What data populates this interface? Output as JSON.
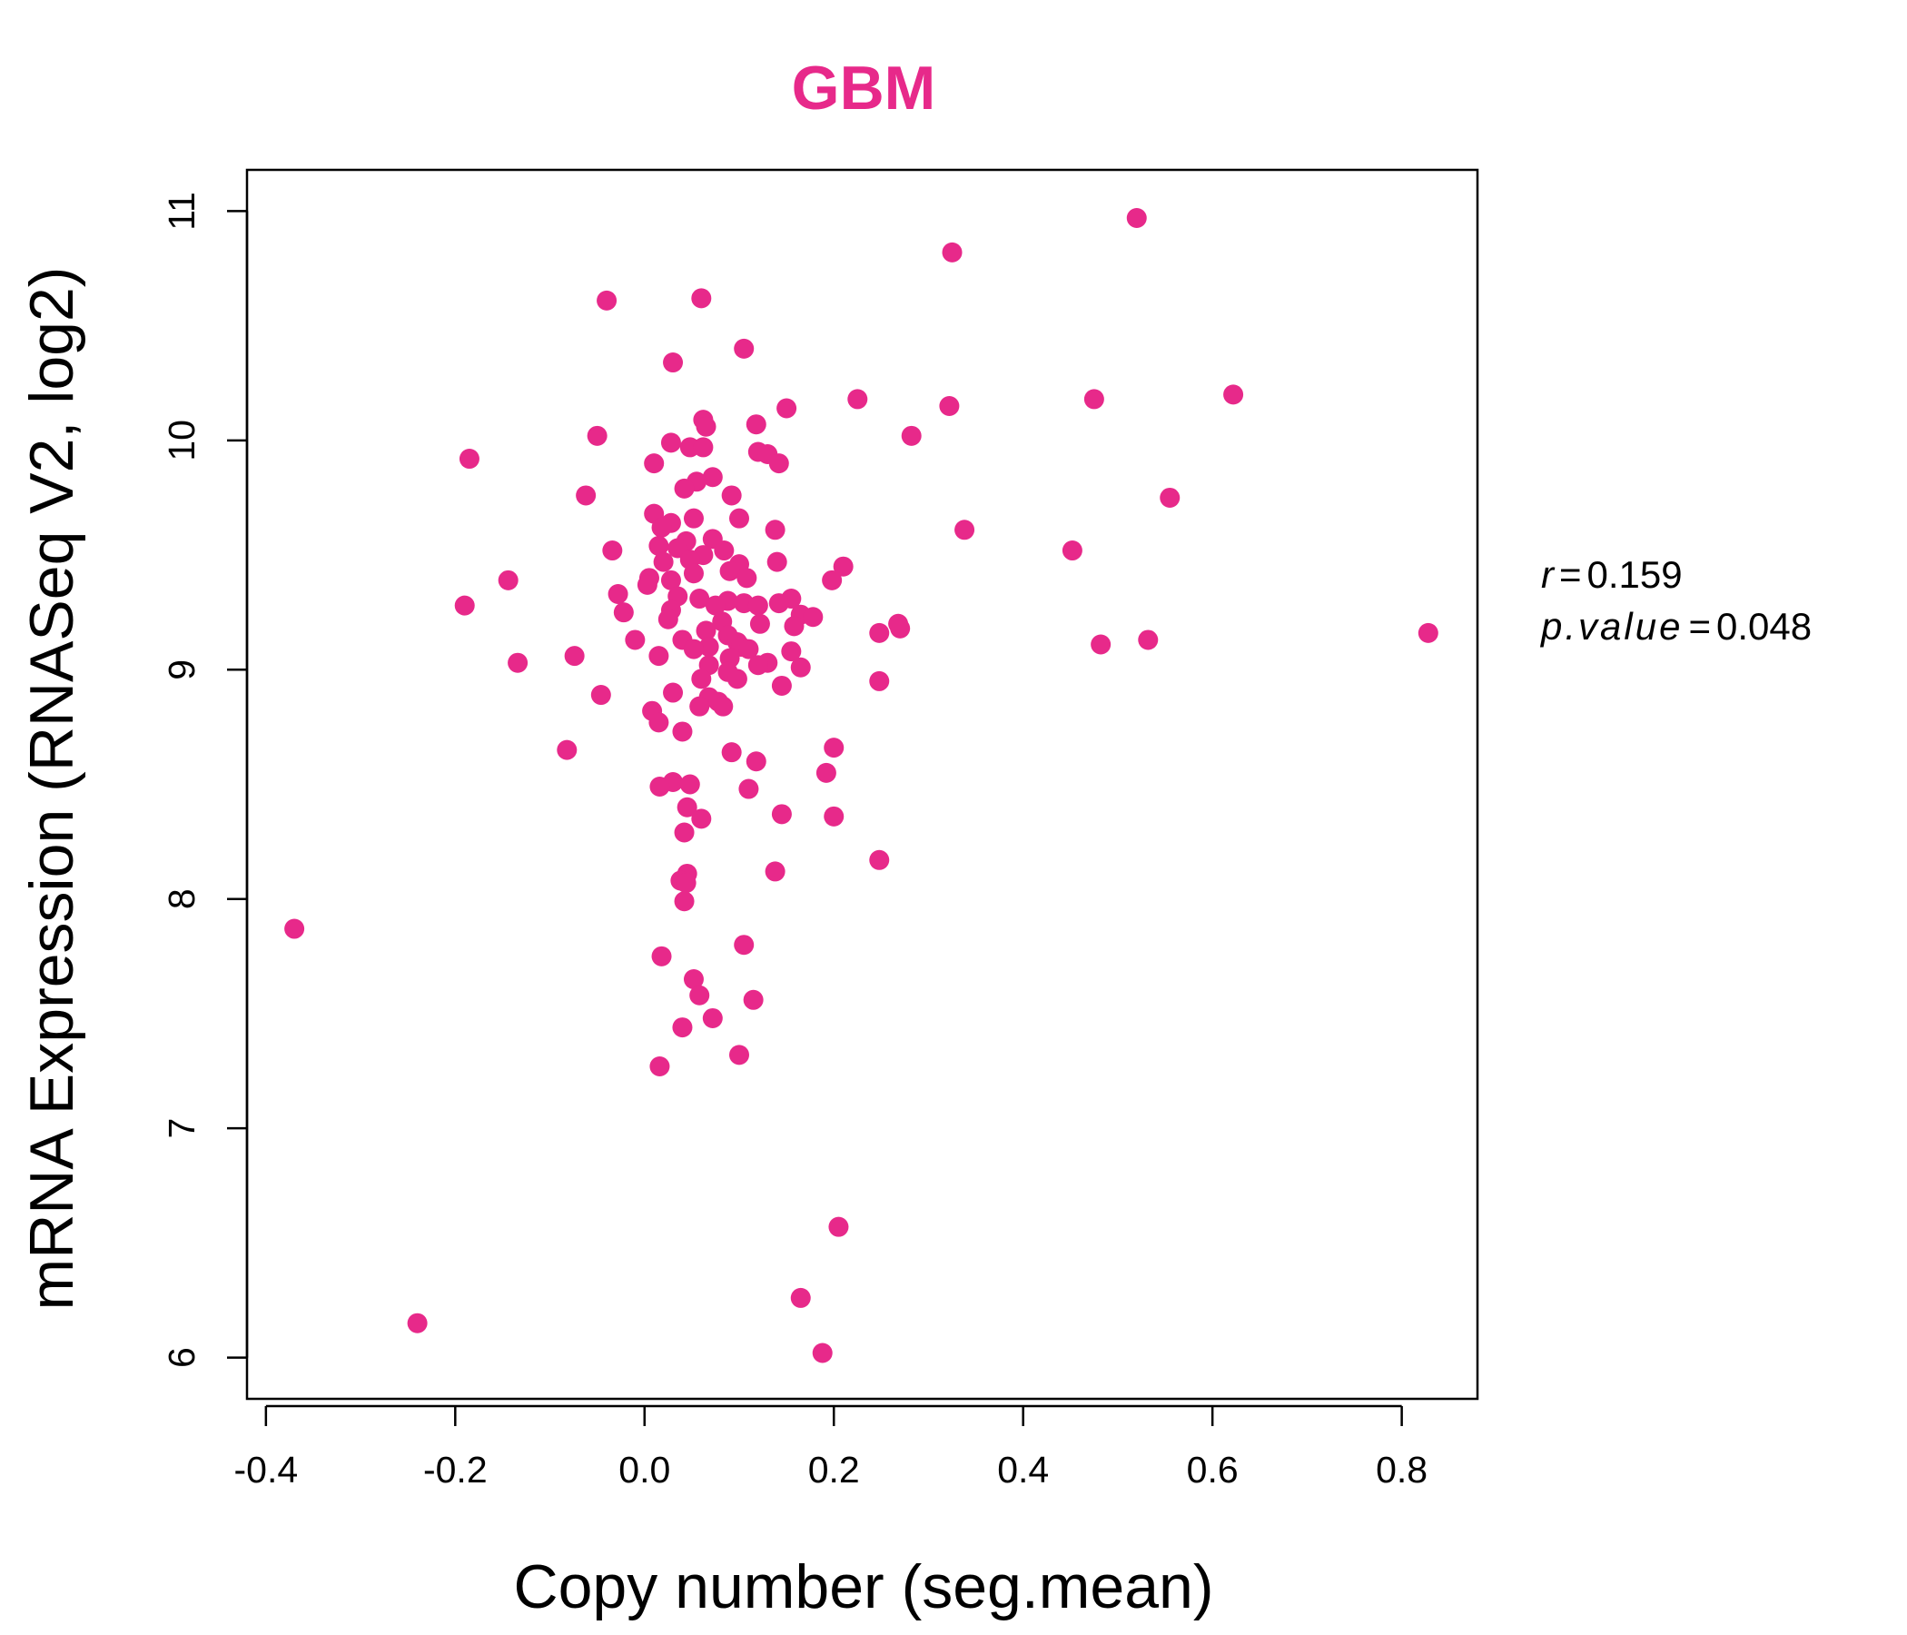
{
  "chart_data": {
    "type": "scatter",
    "title": "GBM",
    "xlabel": "Copy number (seg.mean)",
    "ylabel": "mRNA Expression (RNASeq V2, log2)",
    "xlim": [
      -0.42,
      0.88
    ],
    "ylim": [
      5.82,
      11.18
    ],
    "xticks": [
      -0.4,
      -0.2,
      0.0,
      0.2,
      0.4,
      0.6,
      0.8
    ],
    "xtick_labels": [
      "-0.4",
      "-0.2",
      "0.0",
      "0.2",
      "0.4",
      "0.6",
      "0.8"
    ],
    "yticks": [
      6,
      7,
      8,
      9,
      10,
      11
    ],
    "ytick_labels": [
      "6",
      "7",
      "8",
      "9",
      "10",
      "11"
    ],
    "point_color": "#E7298A",
    "title_color": "#E7298A",
    "grid": false,
    "stats": {
      "r_label": "r",
      "r_value": "0.159",
      "p_label": "p.value",
      "p_value": "0.048",
      "eq": "="
    },
    "points": [
      [
        0.52,
        10.97
      ],
      [
        0.325,
        10.82
      ],
      [
        -0.04,
        10.61
      ],
      [
        0.06,
        10.62
      ],
      [
        0.105,
        10.4
      ],
      [
        0.03,
        10.34
      ],
      [
        0.225,
        10.18
      ],
      [
        0.475,
        10.18
      ],
      [
        0.622,
        10.2
      ],
      [
        0.322,
        10.15
      ],
      [
        0.15,
        10.14
      ],
      [
        0.062,
        10.09
      ],
      [
        0.065,
        10.06
      ],
      [
        0.118,
        10.07
      ],
      [
        -0.05,
        10.02
      ],
      [
        0.028,
        9.99
      ],
      [
        0.282,
        10.02
      ],
      [
        0.048,
        9.97
      ],
      [
        0.062,
        9.97
      ],
      [
        0.12,
        9.95
      ],
      [
        0.13,
        9.94
      ],
      [
        -0.185,
        9.92
      ],
      [
        0.01,
        9.9
      ],
      [
        0.142,
        9.9
      ],
      [
        0.072,
        9.84
      ],
      [
        0.055,
        9.82
      ],
      [
        0.042,
        9.79
      ],
      [
        -0.062,
        9.76
      ],
      [
        0.092,
        9.76
      ],
      [
        0.555,
        9.75
      ],
      [
        0.01,
        9.68
      ],
      [
        0.052,
        9.66
      ],
      [
        0.1,
        9.66
      ],
      [
        0.028,
        9.64
      ],
      [
        0.018,
        9.62
      ],
      [
        0.138,
        9.61
      ],
      [
        0.338,
        9.61
      ],
      [
        0.072,
        9.57
      ],
      [
        0.044,
        9.56
      ],
      [
        0.015,
        9.54
      ],
      [
        0.035,
        9.53
      ],
      [
        -0.034,
        9.52
      ],
      [
        0.084,
        9.52
      ],
      [
        0.452,
        9.52
      ],
      [
        0.062,
        9.5
      ],
      [
        0.048,
        9.48
      ],
      [
        0.02,
        9.47
      ],
      [
        0.14,
        9.47
      ],
      [
        0.1,
        9.46
      ],
      [
        0.21,
        9.45
      ],
      [
        0.09,
        9.43
      ],
      [
        0.052,
        9.42
      ],
      [
        0.005,
        9.4
      ],
      [
        0.108,
        9.4
      ],
      [
        0.198,
        9.39
      ],
      [
        -0.144,
        9.39
      ],
      [
        0.028,
        9.39
      ],
      [
        0.003,
        9.37
      ],
      [
        -0.028,
        9.33
      ],
      [
        0.035,
        9.32
      ],
      [
        0.058,
        9.31
      ],
      [
        0.155,
        9.31
      ],
      [
        0.088,
        9.3
      ],
      [
        0.105,
        9.29
      ],
      [
        0.142,
        9.29
      ],
      [
        -0.19,
        9.28
      ],
      [
        0.075,
        9.28
      ],
      [
        0.12,
        9.28
      ],
      [
        0.028,
        9.26
      ],
      [
        -0.022,
        9.25
      ],
      [
        0.165,
        9.24
      ],
      [
        0.178,
        9.23
      ],
      [
        0.025,
        9.22
      ],
      [
        0.082,
        9.21
      ],
      [
        0.268,
        9.2
      ],
      [
        0.122,
        9.2
      ],
      [
        0.158,
        9.19
      ],
      [
        0.27,
        9.18
      ],
      [
        0.065,
        9.17
      ],
      [
        0.248,
        9.16
      ],
      [
        0.828,
        9.16
      ],
      [
        0.088,
        9.15
      ],
      [
        0.04,
        9.13
      ],
      [
        -0.01,
        9.13
      ],
      [
        0.532,
        9.13
      ],
      [
        0.098,
        9.12
      ],
      [
        0.482,
        9.11
      ],
      [
        0.068,
        9.1
      ],
      [
        0.102,
        9.1
      ],
      [
        0.052,
        9.09
      ],
      [
        0.11,
        9.09
      ],
      [
        0.155,
        9.08
      ],
      [
        -0.074,
        9.06
      ],
      [
        0.015,
        9.06
      ],
      [
        0.09,
        9.05
      ],
      [
        -0.134,
        9.03
      ],
      [
        0.13,
        9.03
      ],
      [
        0.12,
        9.02
      ],
      [
        0.068,
        9.02
      ],
      [
        0.165,
        9.01
      ],
      [
        0.088,
        8.99
      ],
      [
        0.098,
        8.96
      ],
      [
        0.06,
        8.96
      ],
      [
        0.248,
        8.95
      ],
      [
        0.145,
        8.93
      ],
      [
        0.03,
        8.9
      ],
      [
        -0.046,
        8.89
      ],
      [
        0.068,
        8.88
      ],
      [
        0.078,
        8.86
      ],
      [
        0.058,
        8.84
      ],
      [
        0.083,
        8.84
      ],
      [
        0.008,
        8.82
      ],
      [
        0.015,
        8.77
      ],
      [
        0.04,
        8.73
      ],
      [
        0.2,
        8.66
      ],
      [
        -0.082,
        8.65
      ],
      [
        0.092,
        8.64
      ],
      [
        0.118,
        8.6
      ],
      [
        0.192,
        8.55
      ],
      [
        0.03,
        8.51
      ],
      [
        0.048,
        8.5
      ],
      [
        0.016,
        8.49
      ],
      [
        0.11,
        8.48
      ],
      [
        0.045,
        8.4
      ],
      [
        0.06,
        8.35
      ],
      [
        0.145,
        8.37
      ],
      [
        0.2,
        8.36
      ],
      [
        0.042,
        8.29
      ],
      [
        0.248,
        8.17
      ],
      [
        0.138,
        8.12
      ],
      [
        0.045,
        8.11
      ],
      [
        0.038,
        8.08
      ],
      [
        0.044,
        8.07
      ],
      [
        0.042,
        7.99
      ],
      [
        -0.37,
        7.87
      ],
      [
        0.105,
        7.8
      ],
      [
        0.018,
        7.75
      ],
      [
        0.052,
        7.65
      ],
      [
        0.058,
        7.58
      ],
      [
        0.115,
        7.56
      ],
      [
        0.072,
        7.48
      ],
      [
        0.04,
        7.44
      ],
      [
        0.1,
        7.32
      ],
      [
        0.016,
        7.27
      ],
      [
        0.205,
        6.57
      ],
      [
        0.165,
        6.26
      ],
      [
        -0.24,
        6.15
      ],
      [
        0.188,
        6.02
      ]
    ]
  }
}
